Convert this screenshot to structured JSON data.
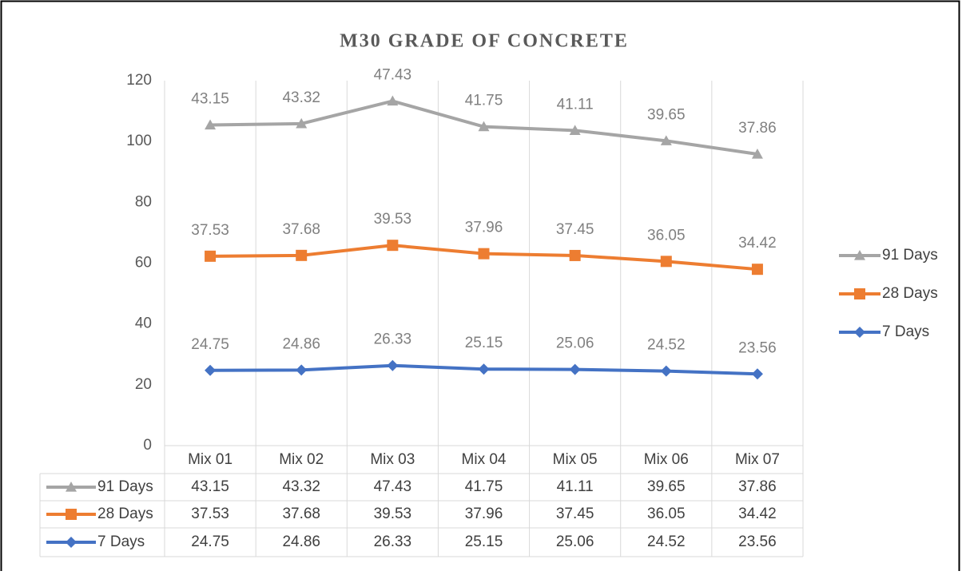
{
  "chart_data": {
    "type": "line",
    "stacked": true,
    "title": "M30 GRADE OF CONCRETE",
    "categories": [
      "Mix 01",
      "Mix 02",
      "Mix 03",
      "Mix 04",
      "Mix 05",
      "Mix 06",
      "Mix 07"
    ],
    "series": [
      {
        "name": "91 Days",
        "color": "#a5a5a5",
        "marker": "triangle",
        "values": [
          43.15,
          43.32,
          47.43,
          41.75,
          41.11,
          39.65,
          37.86
        ]
      },
      {
        "name": "28 Days",
        "color": "#ed7d31",
        "marker": "square",
        "values": [
          37.53,
          37.68,
          39.53,
          37.96,
          37.45,
          36.05,
          34.42
        ]
      },
      {
        "name": "7 Days",
        "color": "#4472c4",
        "marker": "diamond",
        "values": [
          24.75,
          24.86,
          26.33,
          25.15,
          25.06,
          24.52,
          23.56
        ]
      }
    ],
    "ylim": [
      0,
      120
    ],
    "yticks": [
      0,
      20,
      40,
      60,
      80,
      100,
      120
    ],
    "legend": "right",
    "data_table": true
  }
}
